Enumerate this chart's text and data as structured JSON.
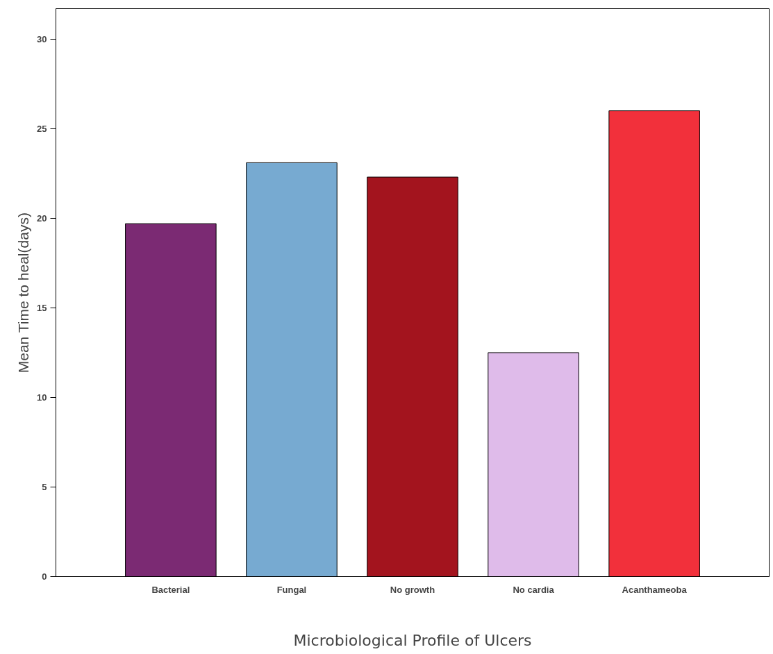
{
  "chart_data": {
    "type": "bar",
    "xlabel": "Microbiological Profile of Ulcers",
    "ylabel": "Mean Time to heal(days)",
    "categories": [
      "Bacterial",
      "Fungal",
      "No growth",
      "No cardia",
      "Acanthameoba"
    ],
    "values": [
      19.7,
      23.1,
      22.3,
      12.5,
      26.0
    ],
    "colors": [
      "#7b2a73",
      "#77aad1",
      "#a3141e",
      "#dfbbea",
      "#f2303b"
    ],
    "ylim": [
      0,
      31.7
    ],
    "yticks": [
      0,
      5,
      10,
      15,
      20,
      25,
      30
    ],
    "grid": false
  }
}
